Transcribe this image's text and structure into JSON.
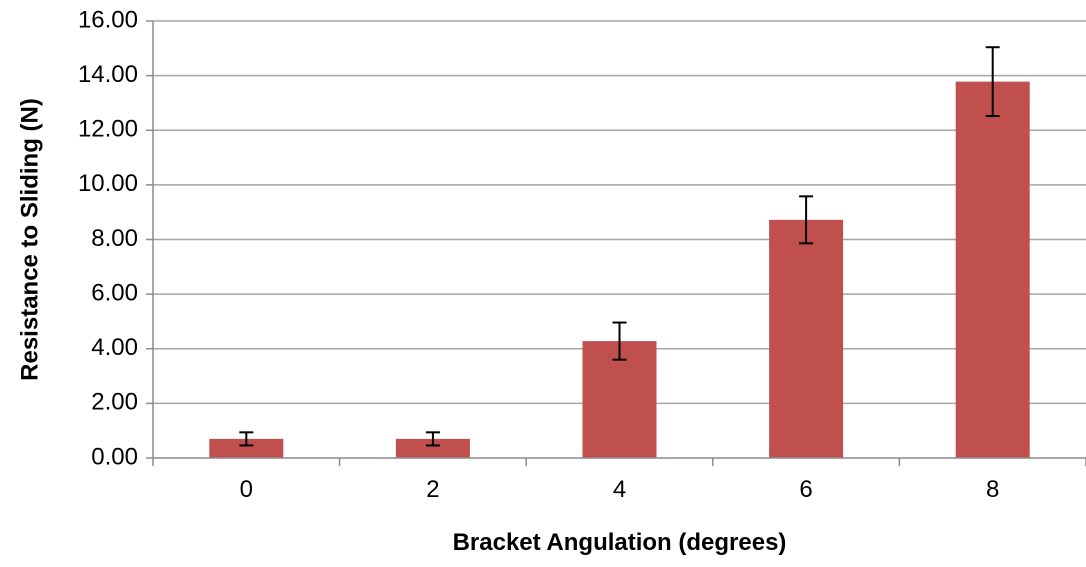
{
  "chart_data": {
    "type": "bar",
    "title": "",
    "xlabel": "Bracket Angulation (degrees)",
    "ylabel": "Resistance to Sliding (N)",
    "categories": [
      "0",
      "2",
      "4",
      "6",
      "8"
    ],
    "series": [
      {
        "values": [
          0.7,
          0.7,
          4.28,
          8.72,
          13.78
        ],
        "error": [
          0.24,
          0.24,
          0.68,
          0.86,
          1.26
        ]
      }
    ],
    "ylim": [
      0,
      16
    ],
    "yticks": [
      0,
      2,
      4,
      6,
      8,
      10,
      12,
      14,
      16
    ],
    "ytick_labels": [
      "0.00",
      "2.00",
      "4.00",
      "6.00",
      "8.00",
      "10.00",
      "12.00",
      "14.00",
      "16.00"
    ],
    "grid": true,
    "legend": "none",
    "bar_color": "#c0504d"
  }
}
